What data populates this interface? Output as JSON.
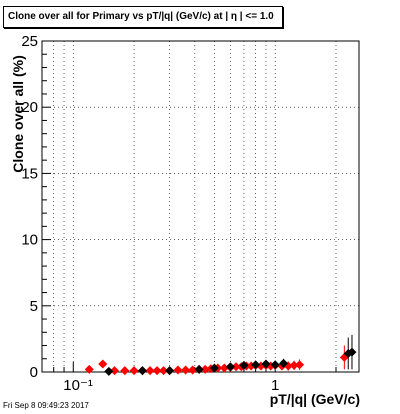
{
  "title": "Clone  over all for Primary vs pT/|q| (GeV/c) at |  η | <= 1.0",
  "timestamp": "Fri Sep  8 09:49:23 2017",
  "colors": {
    "series_red": "#ff0000",
    "series_black": "#000000",
    "grid": "#000000",
    "frame": "#000000"
  },
  "chart_data": {
    "type": "scatter",
    "title": "Clone  over all for Primary vs pT/|q| (GeV/c) at |  η | <= 1.0",
    "xlabel": "pT/|q| (GeV/c)",
    "ylabel": "Clone  over all (%)",
    "xscale": "log",
    "xlim": [
      0.07,
      2.6
    ],
    "ylim": [
      0,
      25
    ],
    "grid": true,
    "x_tick_labels": [
      "10⁻¹",
      "1"
    ],
    "y_tick_labels": [
      "0",
      "5",
      "10",
      "15",
      "20",
      "25"
    ],
    "series": [
      {
        "color": "red",
        "x": [
          0.12,
          0.14,
          0.16,
          0.18,
          0.2,
          0.22,
          0.24,
          0.26,
          0.28,
          0.3,
          0.33,
          0.36,
          0.39,
          0.42,
          0.45,
          0.48,
          0.52,
          0.56,
          0.6,
          0.64,
          0.68,
          0.72,
          0.76,
          0.8,
          0.85,
          0.9,
          0.95,
          1.0,
          1.08,
          1.16,
          1.24,
          1.32,
          2.2
        ],
        "y": [
          0.2,
          0.6,
          0.1,
          0.1,
          0.1,
          0.1,
          0.1,
          0.1,
          0.1,
          0.1,
          0.15,
          0.15,
          0.15,
          0.2,
          0.2,
          0.25,
          0.3,
          0.3,
          0.35,
          0.4,
          0.4,
          0.45,
          0.45,
          0.5,
          0.45,
          0.5,
          0.45,
          0.5,
          0.45,
          0.45,
          0.5,
          0.55,
          1.1
        ],
        "yerr": [
          0.1,
          0.15,
          0.05,
          0.05,
          0.05,
          0.05,
          0.05,
          0.05,
          0.05,
          0.05,
          0.05,
          0.05,
          0.05,
          0.1,
          0.1,
          0.1,
          0.1,
          0.1,
          0.15,
          0.15,
          0.15,
          0.2,
          0.2,
          0.25,
          0.2,
          0.25,
          0.25,
          0.3,
          0.3,
          0.35,
          0.35,
          0.4,
          0.9
        ]
      },
      {
        "color": "black",
        "x": [
          0.15,
          0.22,
          0.3,
          0.42,
          0.5,
          0.6,
          0.7,
          0.8,
          0.9,
          1.0,
          1.1,
          2.3,
          2.4
        ],
        "y": [
          0.05,
          0.1,
          0.1,
          0.2,
          0.3,
          0.4,
          0.5,
          0.55,
          0.6,
          0.55,
          0.65,
          1.4,
          1.5
        ],
        "yerr": [
          0.05,
          0.05,
          0.05,
          0.1,
          0.1,
          0.15,
          0.2,
          0.25,
          0.3,
          0.3,
          0.35,
          1.2,
          1.3
        ]
      }
    ]
  }
}
